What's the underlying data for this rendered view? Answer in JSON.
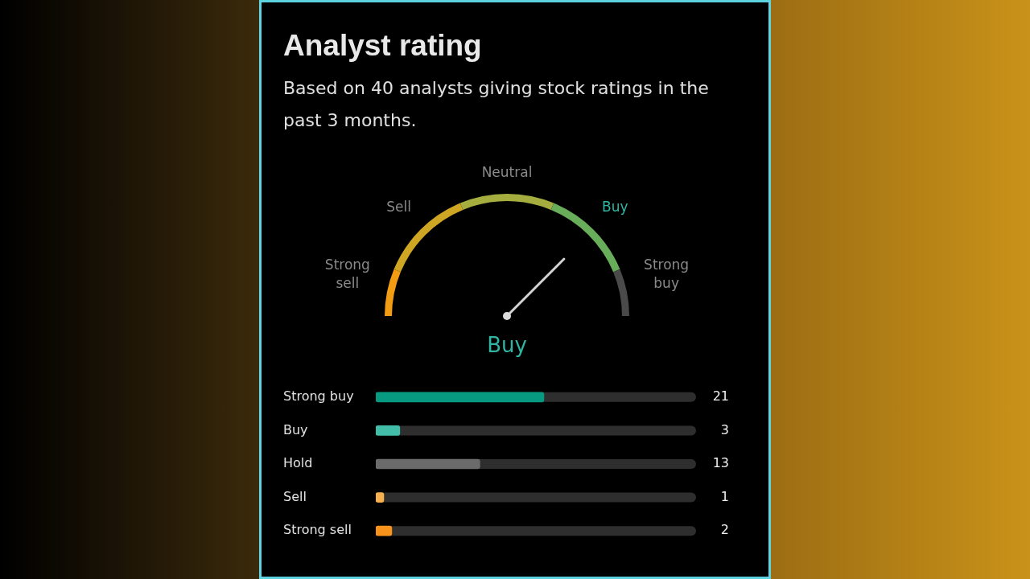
{
  "chart_data": [
    {
      "type": "donut",
      "title": "Analyst rating",
      "subtitle": "Based on 40 analysts giving stock ratings in the past 3 months.",
      "categories": [
        "Strong sell",
        "Sell",
        "Neutral",
        "Buy",
        "Strong buy"
      ],
      "values": [
        12.5,
        25,
        25,
        25,
        12.5
      ],
      "colors": [
        "#f29c14",
        "#cfa524",
        "#a4ad3e",
        "#68ad5a",
        "#4a4a4a"
      ],
      "needle": "Buy"
    },
    {
      "type": "bar",
      "orientation": "horizontal",
      "categories": [
        "Strong buy",
        "Buy",
        "Hold",
        "Sell",
        "Strong sell"
      ],
      "values": [
        21,
        3,
        13,
        1,
        2
      ],
      "colors": [
        "#089981",
        "#42bda8",
        "#6b6b6b",
        "#f7b04e",
        "#f7931a"
      ],
      "xlim": [
        0,
        40
      ],
      "tick_labels": "y",
      "data_labels": true
    }
  ]
}
